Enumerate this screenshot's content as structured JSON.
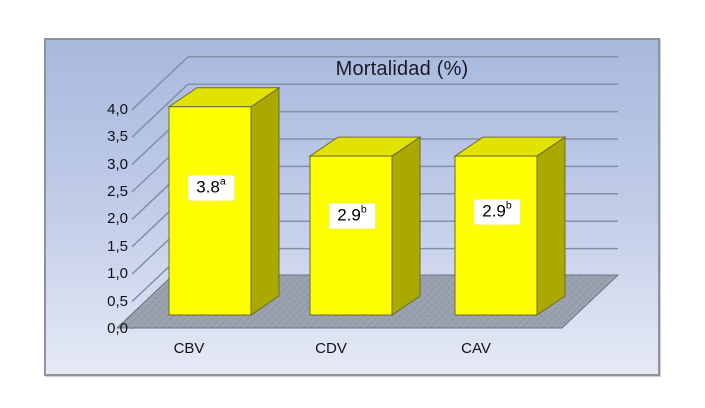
{
  "chart_data": {
    "type": "bar",
    "variant": "3d-column",
    "title": "Mortalidad (%)",
    "categories": [
      "CBV",
      "CDV",
      "CAV"
    ],
    "values": [
      3.8,
      2.9,
      2.9
    ],
    "data_labels": [
      {
        "text": "3.8",
        "superscript": "a"
      },
      {
        "text": "2.9",
        "superscript": "b"
      },
      {
        "text": "2.9",
        "superscript": "b"
      }
    ],
    "ylim": [
      0,
      4
    ],
    "y_tick_step": 0.5,
    "y_tick_labels": [
      "0,0",
      "0,5",
      "1,0",
      "1,5",
      "2,0",
      "2,5",
      "3,0",
      "3,5",
      "4,0"
    ],
    "xlabel": "",
    "ylabel": "",
    "grid": true,
    "legend": "none",
    "colors": {
      "bar_front": "#FFFF00",
      "bar_top": "#E2E200",
      "bar_side": "#A9A900",
      "bar_outline": "#6B6B35",
      "gridline": "#8290A8",
      "floor": "#9AA2AF",
      "floor_hatch": "#7B8494",
      "floor_outline": "#6C7483",
      "wall_top": "#A8B9DE",
      "wall_bottom": "#E6EAF6",
      "title_color": "#1A1A26",
      "label_box_bg": "#FFFFFF",
      "text_color": "#10101A"
    }
  }
}
